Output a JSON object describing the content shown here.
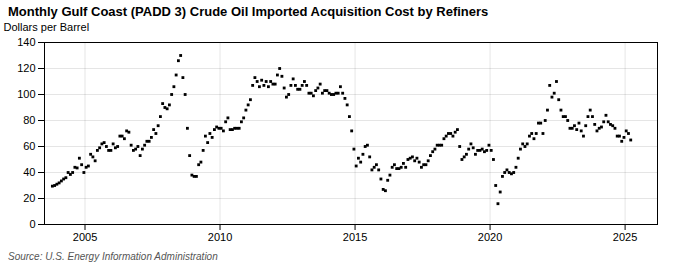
{
  "chart_data": {
    "type": "scatter",
    "title": "Monthly Gulf Coast (PADD 3) Crude Oil Imported Acquisition Cost by Refiners",
    "ylabel": "Dollars per Barrel",
    "source": "Source: U.S. Energy Information Administration",
    "marker": "square",
    "grid": true,
    "xlim": [
      2003.5,
      2026.2
    ],
    "xticks": [
      2005,
      2010,
      2015,
      2020,
      2025
    ],
    "ylim": [
      0,
      140
    ],
    "yticks": [
      0,
      20,
      40,
      60,
      80,
      100,
      120,
      140
    ],
    "x": [
      2003.7916666666667,
      2003.875,
      2003.9583333333333,
      2004.0416666666667,
      2004.125,
      2004.2083333333333,
      2004.2916666666667,
      2004.375,
      2004.4583333333333,
      2004.5416666666667,
      2004.625,
      2004.7083333333333,
      2004.7916666666667,
      2004.875,
      2004.9583333333333,
      2005.0416666666667,
      2005.125,
      2005.2083333333333,
      2005.2916666666667,
      2005.375,
      2005.4583333333333,
      2005.5416666666667,
      2005.625,
      2005.7083333333333,
      2005.7916666666667,
      2005.875,
      2005.9583333333333,
      2006.0416666666667,
      2006.125,
      2006.2083333333333,
      2006.2916666666667,
      2006.375,
      2006.4583333333333,
      2006.5416666666667,
      2006.625,
      2006.7083333333333,
      2006.7916666666667,
      2006.875,
      2006.9583333333333,
      2007.0416666666667,
      2007.125,
      2007.2083333333333,
      2007.2916666666667,
      2007.375,
      2007.4583333333333,
      2007.5416666666667,
      2007.625,
      2007.7083333333333,
      2007.7916666666667,
      2007.875,
      2007.9583333333333,
      2008.0416666666667,
      2008.125,
      2008.2083333333333,
      2008.2916666666667,
      2008.375,
      2008.4583333333333,
      2008.5416666666667,
      2008.625,
      2008.7083333333333,
      2008.7916666666667,
      2008.875,
      2008.9583333333333,
      2009.0416666666667,
      2009.125,
      2009.2083333333333,
      2009.2916666666667,
      2009.375,
      2009.4583333333333,
      2009.5416666666667,
      2009.625,
      2009.7083333333333,
      2009.7916666666667,
      2009.875,
      2009.9583333333333,
      2010.0416666666667,
      2010.125,
      2010.2083333333333,
      2010.2916666666667,
      2010.375,
      2010.4583333333333,
      2010.5416666666667,
      2010.625,
      2010.7083333333333,
      2010.7916666666667,
      2010.875,
      2010.9583333333333,
      2011.0416666666667,
      2011.125,
      2011.2083333333333,
      2011.2916666666667,
      2011.375,
      2011.4583333333333,
      2011.5416666666667,
      2011.625,
      2011.7083333333333,
      2011.7916666666667,
      2011.875,
      2011.9583333333333,
      2012.0416666666667,
      2012.125,
      2012.2083333333333,
      2012.2916666666667,
      2012.375,
      2012.4583333333333,
      2012.5416666666667,
      2012.625,
      2012.7083333333333,
      2012.7916666666667,
      2012.875,
      2012.9583333333333,
      2013.0416666666667,
      2013.125,
      2013.2083333333333,
      2013.2916666666667,
      2013.375,
      2013.4583333333333,
      2013.5416666666667,
      2013.625,
      2013.7083333333333,
      2013.7916666666667,
      2013.875,
      2013.9583333333333,
      2014.0416666666667,
      2014.125,
      2014.2083333333333,
      2014.2916666666667,
      2014.375,
      2014.4583333333333,
      2014.5416666666667,
      2014.625,
      2014.7083333333333,
      2014.7916666666667,
      2014.875,
      2014.9583333333333,
      2015.0416666666667,
      2015.125,
      2015.2083333333333,
      2015.2916666666667,
      2015.375,
      2015.4583333333333,
      2015.5416666666667,
      2015.625,
      2015.7083333333333,
      2015.7916666666667,
      2015.875,
      2015.9583333333333,
      2016.0416666666667,
      2016.125,
      2016.2083333333333,
      2016.2916666666667,
      2016.375,
      2016.4583333333333,
      2016.5416666666667,
      2016.625,
      2016.7083333333333,
      2016.7916666666667,
      2016.875,
      2016.9583333333333,
      2017.0416666666667,
      2017.125,
      2017.2083333333333,
      2017.2916666666667,
      2017.375,
      2017.4583333333333,
      2017.5416666666667,
      2017.625,
      2017.7083333333333,
      2017.7916666666667,
      2017.875,
      2017.9583333333333,
      2018.0416666666667,
      2018.125,
      2018.2083333333333,
      2018.2916666666667,
      2018.375,
      2018.4583333333333,
      2018.5416666666667,
      2018.625,
      2018.7083333333333,
      2018.7916666666667,
      2018.875,
      2018.9583333333333,
      2019.0416666666667,
      2019.125,
      2019.2083333333333,
      2019.2916666666667,
      2019.375,
      2019.4583333333333,
      2019.5416666666667,
      2019.625,
      2019.7083333333333,
      2019.7916666666667,
      2019.875,
      2019.9583333333333,
      2020.0416666666667,
      2020.125,
      2020.2083333333333,
      2020.2916666666667,
      2020.375,
      2020.4583333333333,
      2020.5416666666667,
      2020.625,
      2020.7083333333333,
      2020.7916666666667,
      2020.875,
      2020.9583333333333,
      2021.0416666666667,
      2021.125,
      2021.2083333333333,
      2021.2916666666667,
      2021.375,
      2021.4583333333333,
      2021.5416666666667,
      2021.625,
      2021.7083333333333,
      2021.7916666666667,
      2021.875,
      2021.9583333333333,
      2022.0416666666667,
      2022.125,
      2022.2083333333333,
      2022.2916666666667,
      2022.375,
      2022.4583333333333,
      2022.5416666666667,
      2022.625,
      2022.7083333333333,
      2022.7916666666667,
      2022.875,
      2022.9583333333333,
      2023.0416666666667,
      2023.125,
      2023.2083333333333,
      2023.2916666666667,
      2023.375,
      2023.4583333333333,
      2023.5416666666667,
      2023.625,
      2023.7083333333333,
      2023.7916666666667,
      2023.875,
      2023.9583333333333,
      2024.0416666666667,
      2024.125,
      2024.2083333333333,
      2024.2916666666667,
      2024.375,
      2024.4583333333333,
      2024.5416666666667,
      2024.625,
      2024.7083333333333,
      2024.7916666666667,
      2024.875,
      2024.9583333333333,
      2025.0416666666667,
      2025.125,
      2025.2083333333333
    ],
    "values": [
      29.5,
      30.0,
      31.0,
      32.0,
      33.5,
      35.0,
      36.0,
      40.0,
      38.5,
      40.0,
      44.0,
      43.5,
      51.0,
      46.0,
      40.0,
      44.0,
      45.0,
      54.0,
      52.0,
      49.0,
      57.0,
      59.0,
      62.0,
      63.0,
      60.0,
      57.0,
      57.0,
      62.0,
      59.0,
      60.0,
      68.0,
      68.0,
      66.0,
      72.0,
      71.0,
      61.0,
      57.0,
      58.0,
      60.0,
      53.0,
      58.0,
      61.0,
      64.0,
      64.0,
      67.0,
      73.0,
      70.0,
      76.0,
      83.0,
      93.0,
      90.0,
      89.0,
      92.0,
      100.0,
      106.0,
      115.0,
      126.0,
      130.0,
      113.0,
      100.0,
      74.0,
      53.0,
      38.0,
      37.0,
      37.0,
      46.0,
      48.0,
      57.0,
      68.0,
      63.0,
      70.0,
      67.0,
      73.0,
      75.0,
      74.0,
      74.0,
      72.0,
      79.0,
      82.0,
      73.0,
      73.0,
      74.0,
      74.0,
      74.0,
      79.0,
      82.0,
      88.0,
      92.0,
      96.0,
      107.0,
      113.0,
      110.0,
      106.0,
      111.0,
      107.0,
      110.0,
      106.0,
      110.0,
      108.0,
      108.0,
      115.0,
      120.0,
      114.0,
      105.0,
      98.0,
      100.0,
      107.0,
      112.0,
      107.0,
      104.0,
      104.0,
      107.0,
      110.0,
      107.0,
      101.0,
      101.0,
      99.0,
      103.0,
      105.0,
      108.0,
      101.0,
      103.0,
      103.0,
      101.0,
      100.0,
      100.0,
      101.0,
      101.0,
      106.0,
      101.0,
      97.0,
      92.0,
      83.0,
      72.0,
      58.0,
      45.0,
      51.0,
      48.0,
      54.0,
      60.0,
      61.0,
      52.0,
      42.0,
      44.0,
      46.0,
      42.0,
      35.0,
      27.0,
      26.0,
      34.0,
      38.0,
      44.0,
      46.0,
      43.0,
      43.0,
      44.0,
      47.0,
      44.0,
      50.0,
      51.0,
      52.0,
      49.0,
      51.0,
      48.0,
      44.0,
      46.0,
      46.0,
      49.0,
      53.0,
      56.0,
      58.0,
      61.0,
      61.0,
      61.0,
      66.0,
      68.0,
      70.0,
      70.0,
      68.0,
      71.0,
      73.0,
      60.0,
      50.0,
      52.0,
      54.0,
      58.0,
      62.0,
      59.0,
      54.0,
      57.0,
      57.0,
      58.0,
      56.0,
      57.0,
      61.0,
      57.0,
      50.0,
      30.0,
      16.0,
      25.0,
      37.0,
      40.0,
      42.0,
      40.0,
      39.0,
      40.0,
      44.0,
      51.0,
      58.0,
      62.0,
      60.0,
      62.0,
      68.0,
      70.0,
      66.0,
      70.0,
      78.0,
      78.0,
      70.0,
      80.0,
      88.0,
      107.0,
      98.0,
      101.0,
      110.0,
      96.0,
      88.0,
      83.0,
      83.0,
      80.0,
      74.0,
      74.0,
      76.0,
      73.0,
      78.0,
      72.0,
      68.0,
      76.0,
      83.0,
      88.0,
      83.0,
      77.0,
      72.0,
      74.0,
      75.0,
      79.0,
      84.0,
      79.0,
      77.0,
      76.0,
      74.0,
      68.0,
      68.0,
      64.0,
      67.0,
      72.0,
      70.0,
      65.0
    ]
  }
}
